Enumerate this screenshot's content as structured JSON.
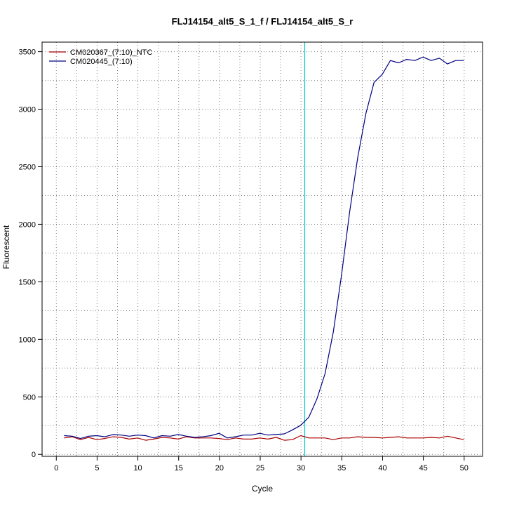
{
  "chart_data": {
    "type": "line",
    "title": "FLJ14154_alt5_S_1_f / FLJ14154_alt5_S_r",
    "xlabel": "Cycle",
    "ylabel": "Fluorescent",
    "xlim": [
      -1.7,
      52.3
    ],
    "ylim": [
      -20,
      3580
    ],
    "x_ticks": [
      0,
      5,
      10,
      15,
      20,
      25,
      30,
      35,
      40,
      45,
      50
    ],
    "y_ticks": [
      0,
      500,
      1000,
      1500,
      2000,
      2500,
      3000,
      3500
    ],
    "minor_x_grid": [
      2.5,
      7.5,
      12.5,
      17.5,
      22.5,
      27.5,
      32.5,
      37.5,
      42.5,
      47.5
    ],
    "grid": true,
    "grid_style": "dotted",
    "legend_position": "top-left",
    "threshold": {
      "axis": "x",
      "value": 30.5,
      "color": "#00cccc"
    },
    "x": [
      1,
      2,
      3,
      4,
      5,
      6,
      7,
      8,
      9,
      10,
      11,
      12,
      13,
      14,
      15,
      16,
      17,
      18,
      19,
      20,
      21,
      22,
      23,
      24,
      25,
      26,
      27,
      28,
      29,
      30,
      31,
      32,
      33,
      34,
      35,
      36,
      37,
      38,
      39,
      40,
      41,
      42,
      43,
      44,
      45,
      46,
      47,
      48,
      49,
      50
    ],
    "series": [
      {
        "name": "CM020367_(7:10)_NTC",
        "color": "#aa0000",
        "values": [
          140,
          150,
          125,
          145,
          125,
          135,
          150,
          145,
          130,
          140,
          120,
          130,
          145,
          140,
          130,
          150,
          140,
          140,
          140,
          135,
          125,
          140,
          130,
          130,
          140,
          130,
          145,
          120,
          125,
          160,
          140,
          140,
          140,
          125,
          140,
          140,
          150,
          145,
          145,
          140,
          145,
          150,
          140,
          140,
          140,
          145,
          140,
          155,
          140,
          125
        ]
      },
      {
        "name": "CM020445_(7:10)",
        "color": "#000080",
        "values": [
          160,
          155,
          135,
          155,
          160,
          150,
          170,
          165,
          155,
          165,
          160,
          140,
          160,
          155,
          170,
          155,
          145,
          150,
          160,
          180,
          140,
          150,
          165,
          165,
          180,
          165,
          170,
          175,
          210,
          250,
          320,
          480,
          700,
          1060,
          1550,
          2100,
          2580,
          2960,
          3230,
          3300,
          3420,
          3400,
          3430,
          3420,
          3450,
          3420,
          3440,
          3390,
          3420,
          3420
        ]
      }
    ]
  }
}
